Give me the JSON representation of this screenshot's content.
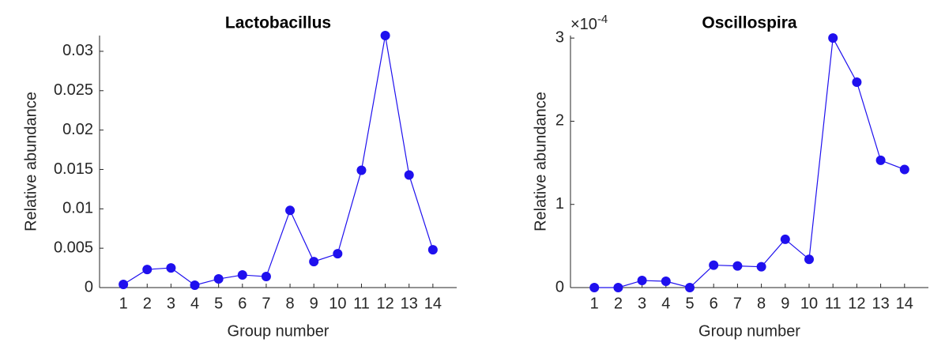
{
  "chart_data": [
    {
      "type": "line",
      "title": "Lactobacillus",
      "x_label": "Group number",
      "y_label": "Relative abundance",
      "x": [
        1,
        2,
        3,
        4,
        5,
        6,
        7,
        8,
        9,
        10,
        11,
        12,
        13,
        14
      ],
      "series": [
        {
          "name": "Lactobacillus",
          "color": "#1f10ee",
          "values": [
            0.0004,
            0.0023,
            0.0025,
            0.0003,
            0.0011,
            0.0016,
            0.0014,
            0.0098,
            0.0033,
            0.0043,
            0.0149,
            0.032,
            0.0143,
            0.0048
          ]
        }
      ],
      "xlim": [
        0,
        15
      ],
      "xticks": [
        1,
        2,
        3,
        4,
        5,
        6,
        7,
        8,
        9,
        10,
        11,
        12,
        13,
        14
      ],
      "ylim": [
        0,
        0.032
      ],
      "yticks": [
        0,
        0.005,
        0.01,
        0.015,
        0.02,
        0.025,
        0.03
      ]
    },
    {
      "type": "line",
      "title": "Oscillospira",
      "x_label": "Group number",
      "y_label": "Relative abundance",
      "y_scale_label": {
        "base": "×10",
        "exponent": "-4"
      },
      "x": [
        1,
        2,
        3,
        4,
        5,
        6,
        7,
        8,
        9,
        10,
        11,
        12,
        13,
        14
      ],
      "series": [
        {
          "name": "Oscillospira",
          "color": "#1f10ee",
          "values": [
            0,
            0,
            0.085,
            0.076,
            0,
            0.27,
            0.26,
            0.25,
            0.58,
            0.34,
            3.0,
            2.47,
            1.53,
            1.42
          ]
        }
      ],
      "xlim": [
        0,
        15
      ],
      "xticks": [
        1,
        2,
        3,
        4,
        5,
        6,
        7,
        8,
        9,
        10,
        11,
        12,
        13,
        14
      ],
      "ylim": [
        0,
        3.03
      ],
      "yticks": [
        0,
        1,
        2,
        3
      ]
    }
  ]
}
